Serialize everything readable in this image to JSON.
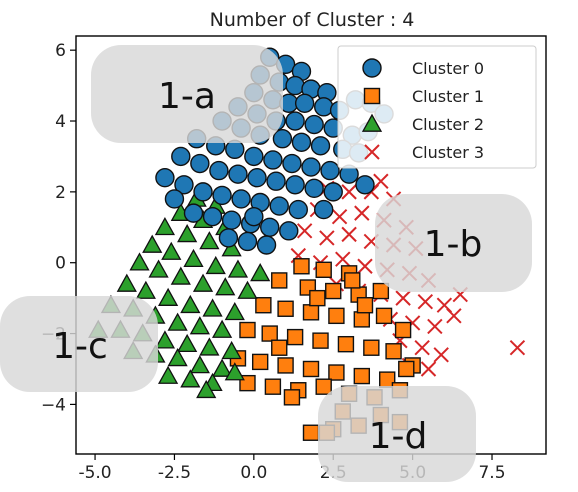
{
  "chart_data": {
    "type": "scatter",
    "title": "Number of Cluster : 4",
    "xlabel": "",
    "ylabel": "",
    "xlim": [
      -5.6,
      9.2
    ],
    "ylim": [
      -5.4,
      6.4
    ],
    "x_ticks": [
      -5.0,
      -2.5,
      0.0,
      2.5,
      5.0,
      7.5
    ],
    "x_tick_labels": [
      "-5.0",
      "-2.5",
      "0.0",
      "2.5",
      "5.0",
      "7.5"
    ],
    "y_ticks": [
      6,
      4,
      2,
      0,
      -2,
      -4
    ],
    "y_tick_labels": [
      "6",
      "4",
      "2",
      "0",
      "−2",
      "−4"
    ],
    "grid": false,
    "legend_position": "top-right",
    "series": [
      {
        "name": "Cluster 0",
        "marker": "circle",
        "color": "#1f77b4",
        "points": [
          [
            0.5,
            5.8
          ],
          [
            1.0,
            5.6
          ],
          [
            1.5,
            5.4
          ],
          [
            0.2,
            5.3
          ],
          [
            0.8,
            5.1
          ],
          [
            1.3,
            5.0
          ],
          [
            1.8,
            4.9
          ],
          [
            2.3,
            4.8
          ],
          [
            0.0,
            4.8
          ],
          [
            0.6,
            4.6
          ],
          [
            1.1,
            4.5
          ],
          [
            1.6,
            4.5
          ],
          [
            2.2,
            4.4
          ],
          [
            2.7,
            4.3
          ],
          [
            3.2,
            4.6
          ],
          [
            3.7,
            4.5
          ],
          [
            4.1,
            4.2
          ],
          [
            -0.5,
            4.4
          ],
          [
            0.1,
            4.2
          ],
          [
            0.7,
            4.0
          ],
          [
            1.3,
            4.0
          ],
          [
            1.9,
            3.9
          ],
          [
            2.5,
            3.8
          ],
          [
            3.1,
            3.6
          ],
          [
            3.6,
            3.7
          ],
          [
            -1.0,
            4.0
          ],
          [
            -0.4,
            3.8
          ],
          [
            0.2,
            3.6
          ],
          [
            0.9,
            3.5
          ],
          [
            1.5,
            3.4
          ],
          [
            2.1,
            3.3
          ],
          [
            2.8,
            3.2
          ],
          [
            3.3,
            3.1
          ],
          [
            -1.8,
            3.5
          ],
          [
            -1.2,
            3.3
          ],
          [
            -0.6,
            3.2
          ],
          [
            0.0,
            3.0
          ],
          [
            0.6,
            2.9
          ],
          [
            1.2,
            2.8
          ],
          [
            1.8,
            2.7
          ],
          [
            2.4,
            2.6
          ],
          [
            3.0,
            2.5
          ],
          [
            -2.3,
            3.0
          ],
          [
            -1.7,
            2.8
          ],
          [
            -1.1,
            2.6
          ],
          [
            -0.5,
            2.5
          ],
          [
            0.1,
            2.4
          ],
          [
            0.7,
            2.3
          ],
          [
            1.3,
            2.2
          ],
          [
            1.9,
            2.1
          ],
          [
            2.5,
            2.0
          ],
          [
            -2.8,
            2.4
          ],
          [
            -2.2,
            2.2
          ],
          [
            -1.6,
            2.0
          ],
          [
            -1.0,
            1.9
          ],
          [
            -0.4,
            1.8
          ],
          [
            0.2,
            1.7
          ],
          [
            0.8,
            1.6
          ],
          [
            1.4,
            1.5
          ],
          [
            -1.9,
            1.4
          ],
          [
            -1.3,
            1.3
          ],
          [
            -0.7,
            1.2
          ],
          [
            -0.1,
            1.1
          ],
          [
            0.5,
            1.0
          ],
          [
            1.1,
            0.9
          ],
          [
            -0.8,
            0.7
          ],
          [
            -0.2,
            0.6
          ],
          [
            0.4,
            0.5
          ],
          [
            3.5,
            2.2
          ],
          [
            2.2,
            1.5
          ],
          [
            -2.5,
            1.8
          ],
          [
            0.0,
            1.3
          ]
        ]
      },
      {
        "name": "Cluster 1",
        "marker": "square",
        "color": "#ff7f0e",
        "points": [
          [
            1.5,
            -0.1
          ],
          [
            2.2,
            -0.2
          ],
          [
            3.0,
            -0.3
          ],
          [
            0.8,
            -0.5
          ],
          [
            1.7,
            -0.7
          ],
          [
            2.5,
            -0.8
          ],
          [
            3.3,
            -0.9
          ],
          [
            4.0,
            -0.8
          ],
          [
            0.3,
            -1.2
          ],
          [
            1.0,
            -1.3
          ],
          [
            1.8,
            -1.4
          ],
          [
            2.6,
            -1.5
          ],
          [
            3.4,
            -1.6
          ],
          [
            4.1,
            -1.5
          ],
          [
            4.7,
            -1.9
          ],
          [
            -0.2,
            -1.9
          ],
          [
            0.5,
            -2.0
          ],
          [
            1.3,
            -2.1
          ],
          [
            2.1,
            -2.2
          ],
          [
            2.9,
            -2.3
          ],
          [
            3.7,
            -2.4
          ],
          [
            4.4,
            -2.5
          ],
          [
            -0.5,
            -2.7
          ],
          [
            0.2,
            -2.8
          ],
          [
            1.0,
            -2.9
          ],
          [
            1.8,
            -3.0
          ],
          [
            2.6,
            -3.1
          ],
          [
            3.4,
            -3.2
          ],
          [
            4.2,
            -3.3
          ],
          [
            5.0,
            -2.9
          ],
          [
            -0.2,
            -3.4
          ],
          [
            0.6,
            -3.5
          ],
          [
            1.4,
            -3.6
          ],
          [
            2.2,
            -3.5
          ],
          [
            3.0,
            -3.7
          ],
          [
            3.8,
            -3.8
          ],
          [
            4.6,
            -3.6
          ],
          [
            1.8,
            -4.8
          ],
          [
            2.5,
            -4.7
          ],
          [
            3.3,
            -4.6
          ],
          [
            4.0,
            -4.3
          ],
          [
            4.6,
            -4.5
          ],
          [
            2.0,
            -1.0
          ],
          [
            0.8,
            -2.4
          ],
          [
            3.5,
            -1.2
          ],
          [
            4.8,
            -3.0
          ],
          [
            2.8,
            -4.2
          ],
          [
            1.2,
            -3.8
          ],
          [
            3.1,
            -0.5
          ],
          [
            2.3,
            -4.8
          ]
        ]
      },
      {
        "name": "Cluster 2",
        "marker": "triangle",
        "color": "#2ca02c",
        "points": [
          [
            -1.8,
            1.8
          ],
          [
            -1.2,
            1.6
          ],
          [
            -2.3,
            1.4
          ],
          [
            -1.6,
            1.2
          ],
          [
            -0.9,
            1.0
          ],
          [
            -2.8,
            1.0
          ],
          [
            -2.1,
            0.8
          ],
          [
            -1.4,
            0.6
          ],
          [
            -0.7,
            0.4
          ],
          [
            -3.2,
            0.5
          ],
          [
            -2.6,
            0.3
          ],
          [
            -1.9,
            0.1
          ],
          [
            -1.2,
            -0.1
          ],
          [
            -0.5,
            -0.2
          ],
          [
            0.2,
            -0.3
          ],
          [
            -3.6,
            0.0
          ],
          [
            -3.0,
            -0.2
          ],
          [
            -2.3,
            -0.4
          ],
          [
            -1.6,
            -0.6
          ],
          [
            -0.9,
            -0.7
          ],
          [
            -0.2,
            -0.8
          ],
          [
            -4.0,
            -0.6
          ],
          [
            -3.4,
            -0.8
          ],
          [
            -2.7,
            -1.0
          ],
          [
            -2.0,
            -1.2
          ],
          [
            -1.3,
            -1.3
          ],
          [
            -0.6,
            -1.4
          ],
          [
            -4.5,
            -1.2
          ],
          [
            -3.8,
            -1.3
          ],
          [
            -3.1,
            -1.5
          ],
          [
            -2.4,
            -1.7
          ],
          [
            -1.7,
            -1.8
          ],
          [
            -1.0,
            -1.9
          ],
          [
            -4.9,
            -1.9
          ],
          [
            -4.2,
            -1.9
          ],
          [
            -3.5,
            -2.0
          ],
          [
            -2.8,
            -2.2
          ],
          [
            -2.1,
            -2.3
          ],
          [
            -1.4,
            -2.4
          ],
          [
            -0.7,
            -2.5
          ],
          [
            -3.8,
            -2.5
          ],
          [
            -3.1,
            -2.6
          ],
          [
            -2.4,
            -2.7
          ],
          [
            -1.7,
            -2.9
          ],
          [
            -1.0,
            -3.0
          ],
          [
            -2.7,
            -3.2
          ],
          [
            -2.0,
            -3.3
          ],
          [
            -1.3,
            -3.4
          ],
          [
            -0.6,
            -3.1
          ],
          [
            -1.5,
            -3.6
          ]
        ]
      },
      {
        "name": "Cluster 3",
        "marker": "x",
        "color": "#d62728",
        "points": [
          [
            2.3,
            2.1
          ],
          [
            3.0,
            2.0
          ],
          [
            3.7,
            2.0
          ],
          [
            4.4,
            1.8
          ],
          [
            2.0,
            1.5
          ],
          [
            2.7,
            1.3
          ],
          [
            3.4,
            1.4
          ],
          [
            4.1,
            1.2
          ],
          [
            4.8,
            1.0
          ],
          [
            1.6,
            0.9
          ],
          [
            2.3,
            0.7
          ],
          [
            3.0,
            0.8
          ],
          [
            3.7,
            0.6
          ],
          [
            4.4,
            0.5
          ],
          [
            5.1,
            0.4
          ],
          [
            1.4,
            0.2
          ],
          [
            2.1,
            0.0
          ],
          [
            2.8,
            0.1
          ],
          [
            3.5,
            -0.1
          ],
          [
            4.2,
            -0.2
          ],
          [
            4.9,
            -0.3
          ],
          [
            5.5,
            -0.5
          ],
          [
            2.6,
            -0.6
          ],
          [
            3.3,
            -0.8
          ],
          [
            4.0,
            -0.9
          ],
          [
            4.7,
            -1.0
          ],
          [
            5.4,
            -1.1
          ],
          [
            6.0,
            -1.2
          ],
          [
            4.3,
            -1.6
          ],
          [
            5.0,
            -1.7
          ],
          [
            5.7,
            -1.8
          ],
          [
            6.3,
            -1.5
          ],
          [
            4.6,
            -2.2
          ],
          [
            5.3,
            -2.4
          ],
          [
            5.9,
            -2.6
          ],
          [
            4.9,
            -2.9
          ],
          [
            5.5,
            -3.0
          ],
          [
            8.3,
            -2.4
          ],
          [
            6.5,
            -0.9
          ],
          [
            4.0,
            2.3
          ]
        ]
      }
    ]
  },
  "overlays": [
    {
      "label": "1-a"
    },
    {
      "label": "1-b"
    },
    {
      "label": "1-c"
    },
    {
      "label": "1-d"
    }
  ]
}
